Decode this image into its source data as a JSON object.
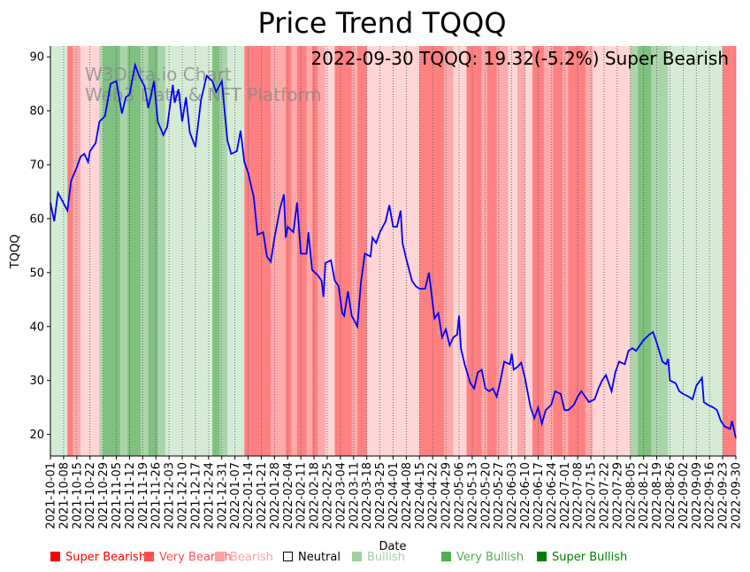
{
  "chart_data": {
    "type": "line",
    "title": "Price Trend TQQQ",
    "annotation": "2022-09-30 TQQQ: 19.32(-5.2%) Super Bearish",
    "watermark": [
      "W3Data.io Chart",
      "Web3 Data & NFT Platform"
    ],
    "xlabel": "Date",
    "ylabel": "TQQQ",
    "ylim": [
      16,
      92
    ],
    "yticks": [
      20,
      30,
      40,
      50,
      60,
      70,
      80,
      90
    ],
    "x_range": [
      "2021-10-01",
      "2022-09-30"
    ],
    "xticks": [
      "2021-10-01",
      "2021-10-08",
      "2021-10-15",
      "2021-10-22",
      "2021-10-29",
      "2021-11-05",
      "2021-11-12",
      "2021-11-19",
      "2021-11-26",
      "2021-12-03",
      "2021-12-10",
      "2021-12-17",
      "2021-12-24",
      "2021-12-31",
      "2022-01-07",
      "2022-01-14",
      "2022-01-21",
      "2022-01-28",
      "2022-02-04",
      "2022-02-11",
      "2022-02-18",
      "2022-02-25",
      "2022-03-04",
      "2022-03-11",
      "2022-03-18",
      "2022-03-25",
      "2022-04-01",
      "2022-04-08",
      "2022-04-15",
      "2022-04-22",
      "2022-04-29",
      "2022-05-06",
      "2022-05-13",
      "2022-05-20",
      "2022-05-27",
      "2022-06-03",
      "2022-06-10",
      "2022-06-17",
      "2022-06-24",
      "2022-07-01",
      "2022-07-08",
      "2022-07-15",
      "2022-07-22",
      "2022-07-29",
      "2022-08-05",
      "2022-08-12",
      "2022-08-19",
      "2022-08-26",
      "2022-09-02",
      "2022-09-09",
      "2022-09-16",
      "2022-09-23",
      "2022-09-30"
    ],
    "line_color": "#0000ff",
    "series": [
      {
        "name": "TQQQ",
        "points": [
          [
            "2021-10-01",
            63.0
          ],
          [
            "2021-10-03",
            59.5
          ],
          [
            "2021-10-05",
            64.8
          ],
          [
            "2021-10-07",
            63.5
          ],
          [
            "2021-10-10",
            61.5
          ],
          [
            "2021-10-12",
            67.0
          ],
          [
            "2021-10-15",
            69.5
          ],
          [
            "2021-10-17",
            71.5
          ],
          [
            "2021-10-19",
            72.0
          ],
          [
            "2021-10-21",
            70.5
          ],
          [
            "2021-10-22",
            72.5
          ],
          [
            "2021-10-25",
            74.0
          ],
          [
            "2021-10-27",
            78.0
          ],
          [
            "2021-10-30",
            79.0
          ],
          [
            "2021-11-02",
            85.0
          ],
          [
            "2021-11-05",
            85.5
          ],
          [
            "2021-11-08",
            79.5
          ],
          [
            "2021-11-10",
            82.5
          ],
          [
            "2021-11-12",
            83.0
          ],
          [
            "2021-11-15",
            88.5
          ],
          [
            "2021-11-17",
            86.5
          ],
          [
            "2021-11-20",
            84.5
          ],
          [
            "2021-11-22",
            80.5
          ],
          [
            "2021-11-25",
            85.5
          ],
          [
            "2021-11-27",
            78.0
          ],
          [
            "2021-11-30",
            75.5
          ],
          [
            "2021-12-02",
            77.0
          ],
          [
            "2021-12-05",
            84.8
          ],
          [
            "2021-12-06",
            81.5
          ],
          [
            "2021-12-08",
            84.0
          ],
          [
            "2021-12-10",
            78.0
          ],
          [
            "2021-12-12",
            82.5
          ],
          [
            "2021-12-14",
            76.0
          ],
          [
            "2021-12-17",
            73.3
          ],
          [
            "2021-12-20",
            82.0
          ],
          [
            "2021-12-23",
            86.5
          ],
          [
            "2021-12-26",
            85.5
          ],
          [
            "2021-12-28",
            83.5
          ],
          [
            "2021-12-31",
            85.5
          ],
          [
            "2022-01-03",
            74.5
          ],
          [
            "2022-01-05",
            72.0
          ],
          [
            "2022-01-08",
            72.5
          ],
          [
            "2022-01-10",
            76.3
          ],
          [
            "2022-01-12",
            70.5
          ],
          [
            "2022-01-14",
            68.5
          ],
          [
            "2022-01-17",
            64.0
          ],
          [
            "2022-01-19",
            57.0
          ],
          [
            "2022-01-22",
            57.5
          ],
          [
            "2022-01-24",
            53.0
          ],
          [
            "2022-01-26",
            52.0
          ],
          [
            "2022-01-28",
            56.5
          ],
          [
            "2022-01-31",
            62.0
          ],
          [
            "2022-02-02",
            64.5
          ],
          [
            "2022-02-03",
            56.5
          ],
          [
            "2022-02-04",
            58.5
          ],
          [
            "2022-02-07",
            57.5
          ],
          [
            "2022-02-09",
            63.0
          ],
          [
            "2022-02-11",
            53.5
          ],
          [
            "2022-02-14",
            53.5
          ],
          [
            "2022-02-15",
            57.5
          ],
          [
            "2022-02-17",
            50.5
          ],
          [
            "2022-02-20",
            49.5
          ],
          [
            "2022-02-22",
            48.5
          ],
          [
            "2022-02-23",
            45.5
          ],
          [
            "2022-02-24",
            51.8
          ],
          [
            "2022-02-27",
            52.3
          ],
          [
            "2022-03-01",
            48.5
          ],
          [
            "2022-03-03",
            47.5
          ],
          [
            "2022-03-05",
            42.5
          ],
          [
            "2022-03-06",
            42.0
          ],
          [
            "2022-03-08",
            46.5
          ],
          [
            "2022-03-10",
            42.0
          ],
          [
            "2022-03-13",
            40.0
          ],
          [
            "2022-03-15",
            48.5
          ],
          [
            "2022-03-17",
            53.5
          ],
          [
            "2022-03-20",
            53.0
          ],
          [
            "2022-03-21",
            56.5
          ],
          [
            "2022-03-23",
            55.5
          ],
          [
            "2022-03-25",
            57.5
          ],
          [
            "2022-03-28",
            59.5
          ],
          [
            "2022-03-30",
            62.5
          ],
          [
            "2022-04-01",
            58.5
          ],
          [
            "2022-04-03",
            58.5
          ],
          [
            "2022-04-05",
            61.5
          ],
          [
            "2022-04-06",
            55.5
          ],
          [
            "2022-04-08",
            52.5
          ],
          [
            "2022-04-11",
            48.5
          ],
          [
            "2022-04-13",
            47.5
          ],
          [
            "2022-04-15",
            47.0
          ],
          [
            "2022-04-18",
            47.0
          ],
          [
            "2022-04-20",
            50.0
          ],
          [
            "2022-04-23",
            41.5
          ],
          [
            "2022-04-25",
            42.5
          ],
          [
            "2022-04-27",
            38.0
          ],
          [
            "2022-04-29",
            39.5
          ],
          [
            "2022-05-01",
            36.5
          ],
          [
            "2022-05-03",
            38.0
          ],
          [
            "2022-05-05",
            38.5
          ],
          [
            "2022-05-06",
            42.0
          ],
          [
            "2022-05-07",
            36.0
          ],
          [
            "2022-05-09",
            33.0
          ],
          [
            "2022-05-12",
            29.5
          ],
          [
            "2022-05-14",
            28.5
          ],
          [
            "2022-05-16",
            31.5
          ],
          [
            "2022-05-18",
            32.0
          ],
          [
            "2022-05-20",
            28.5
          ],
          [
            "2022-05-22",
            28.0
          ],
          [
            "2022-05-24",
            28.5
          ],
          [
            "2022-05-26",
            27.0
          ],
          [
            "2022-05-28",
            30.0
          ],
          [
            "2022-05-30",
            33.5
          ],
          [
            "2022-06-02",
            33.0
          ],
          [
            "2022-06-03",
            35.0
          ],
          [
            "2022-06-04",
            32.0
          ],
          [
            "2022-06-06",
            32.5
          ],
          [
            "2022-06-08",
            33.3
          ],
          [
            "2022-06-10",
            30.5
          ],
          [
            "2022-06-13",
            25.0
          ],
          [
            "2022-06-15",
            23.0
          ],
          [
            "2022-06-17",
            25.0
          ],
          [
            "2022-06-19",
            22.0
          ],
          [
            "2022-06-21",
            24.5
          ],
          [
            "2022-06-24",
            25.5
          ],
          [
            "2022-06-26",
            28.0
          ],
          [
            "2022-06-29",
            27.5
          ],
          [
            "2022-07-01",
            24.5
          ],
          [
            "2022-07-03",
            24.5
          ],
          [
            "2022-07-06",
            25.5
          ],
          [
            "2022-07-08",
            27.0
          ],
          [
            "2022-07-10",
            28.0
          ],
          [
            "2022-07-12",
            27.0
          ],
          [
            "2022-07-14",
            26.0
          ],
          [
            "2022-07-17",
            26.5
          ],
          [
            "2022-07-19",
            28.5
          ],
          [
            "2022-07-21",
            30.0
          ],
          [
            "2022-07-23",
            31.0
          ],
          [
            "2022-07-26",
            28.0
          ],
          [
            "2022-07-28",
            31.5
          ],
          [
            "2022-07-30",
            33.5
          ],
          [
            "2022-08-02",
            33.0
          ],
          [
            "2022-08-04",
            35.5
          ],
          [
            "2022-08-06",
            36.0
          ],
          [
            "2022-08-08",
            35.5
          ],
          [
            "2022-08-10",
            36.5
          ],
          [
            "2022-08-12",
            37.5
          ],
          [
            "2022-08-15",
            38.5
          ],
          [
            "2022-08-17",
            39.0
          ],
          [
            "2022-08-19",
            37.0
          ],
          [
            "2022-08-22",
            33.5
          ],
          [
            "2022-08-24",
            33.0
          ],
          [
            "2022-08-25",
            34.0
          ],
          [
            "2022-08-26",
            30.0
          ],
          [
            "2022-08-29",
            29.5
          ],
          [
            "2022-08-31",
            28.0
          ],
          [
            "2022-09-02",
            27.5
          ],
          [
            "2022-09-05",
            27.0
          ],
          [
            "2022-09-07",
            26.5
          ],
          [
            "2022-09-09",
            29.0
          ],
          [
            "2022-09-12",
            30.5
          ],
          [
            "2022-09-13",
            26.0
          ],
          [
            "2022-09-15",
            25.5
          ],
          [
            "2022-09-18",
            25.0
          ],
          [
            "2022-09-20",
            24.5
          ],
          [
            "2022-09-22",
            22.5
          ],
          [
            "2022-09-24",
            21.5
          ],
          [
            "2022-09-27",
            21.0
          ],
          [
            "2022-09-28",
            22.5
          ],
          [
            "2022-09-30",
            19.32
          ]
        ]
      }
    ],
    "regimes": {
      "colors": {
        "Super Bearish": "#ff8080",
        "Very Bearish": "#ffaaaa",
        "Bearish": "#ffd5d5",
        "Neutral": "#ffffff",
        "Bullish": "#d5ebd5",
        "Very Bullish": "#aad5aa",
        "Super Bullish": "#80c080"
      },
      "periods": [
        [
          "2021-10-01",
          "2021-10-10",
          "Bullish"
        ],
        [
          "2021-10-10",
          "2021-10-13",
          "Super Bearish"
        ],
        [
          "2021-10-13",
          "2021-10-17",
          "Very Bearish"
        ],
        [
          "2021-10-17",
          "2021-10-27",
          "Bearish"
        ],
        [
          "2021-10-27",
          "2021-10-29",
          "Very Bullish"
        ],
        [
          "2021-10-29",
          "2021-11-07",
          "Super Bullish"
        ],
        [
          "2021-11-07",
          "2021-11-11",
          "Very Bullish"
        ],
        [
          "2021-11-11",
          "2021-11-18",
          "Super Bullish"
        ],
        [
          "2021-11-18",
          "2021-11-22",
          "Very Bullish"
        ],
        [
          "2021-11-22",
          "2021-11-27",
          "Super Bullish"
        ],
        [
          "2021-11-27",
          "2021-12-01",
          "Very Bullish"
        ],
        [
          "2021-12-01",
          "2021-12-26",
          "Bullish"
        ],
        [
          "2021-12-26",
          "2021-12-30",
          "Super Bullish"
        ],
        [
          "2021-12-30",
          "2022-01-03",
          "Very Bullish"
        ],
        [
          "2022-01-03",
          "2022-01-12",
          "Bullish"
        ],
        [
          "2022-01-12",
          "2022-01-26",
          "Super Bearish"
        ],
        [
          "2022-01-26",
          "2022-02-03",
          "Very Bearish"
        ],
        [
          "2022-02-03",
          "2022-02-06",
          "Super Bearish"
        ],
        [
          "2022-02-06",
          "2022-02-09",
          "Very Bearish"
        ],
        [
          "2022-02-09",
          "2022-02-14",
          "Super Bearish"
        ],
        [
          "2022-02-14",
          "2022-02-17",
          "Very Bearish"
        ],
        [
          "2022-02-17",
          "2022-02-20",
          "Super Bearish"
        ],
        [
          "2022-02-20",
          "2022-02-24",
          "Very Bearish"
        ],
        [
          "2022-02-24",
          "2022-03-01",
          "Bearish"
        ],
        [
          "2022-03-01",
          "2022-03-10",
          "Super Bearish"
        ],
        [
          "2022-03-10",
          "2022-03-13",
          "Very Bearish"
        ],
        [
          "2022-03-13",
          "2022-03-18",
          "Super Bearish"
        ],
        [
          "2022-03-18",
          "2022-04-15",
          "Bearish"
        ],
        [
          "2022-04-15",
          "2022-04-28",
          "Super Bearish"
        ],
        [
          "2022-04-28",
          "2022-05-03",
          "Very Bearish"
        ],
        [
          "2022-05-03",
          "2022-05-10",
          "Bearish"
        ],
        [
          "2022-05-10",
          "2022-05-18",
          "Super Bearish"
        ],
        [
          "2022-05-18",
          "2022-05-21",
          "Very Bearish"
        ],
        [
          "2022-05-21",
          "2022-05-26",
          "Super Bearish"
        ],
        [
          "2022-05-26",
          "2022-06-01",
          "Very Bearish"
        ],
        [
          "2022-06-01",
          "2022-06-06",
          "Bearish"
        ],
        [
          "2022-06-06",
          "2022-06-10",
          "Very Bearish"
        ],
        [
          "2022-06-10",
          "2022-06-14",
          "Bearish"
        ],
        [
          "2022-06-14",
          "2022-06-20",
          "Super Bearish"
        ],
        [
          "2022-06-20",
          "2022-06-25",
          "Very Bearish"
        ],
        [
          "2022-06-25",
          "2022-06-30",
          "Super Bearish"
        ],
        [
          "2022-06-30",
          "2022-07-03",
          "Very Bearish"
        ],
        [
          "2022-07-03",
          "2022-07-12",
          "Super Bearish"
        ],
        [
          "2022-07-12",
          "2022-07-16",
          "Very Bearish"
        ],
        [
          "2022-07-16",
          "2022-08-05",
          "Bearish"
        ],
        [
          "2022-08-05",
          "2022-08-09",
          "Very Bullish"
        ],
        [
          "2022-08-09",
          "2022-08-16",
          "Super Bullish"
        ],
        [
          "2022-08-16",
          "2022-08-25",
          "Very Bullish"
        ],
        [
          "2022-08-25",
          "2022-09-23",
          "Bullish"
        ],
        [
          "2022-09-23",
          "2022-09-30",
          "Super Bearish"
        ]
      ]
    },
    "legend": [
      {
        "label": "Super Bearish",
        "color": "#ff0000"
      },
      {
        "label": "Very Bearish",
        "color": "#ff5050"
      },
      {
        "label": "Bearish",
        "color": "#ffa0a0"
      },
      {
        "label": "Neutral",
        "color": "#000000",
        "hollow": true
      },
      {
        "label": "Bullish",
        "color": "#a0d0a0"
      },
      {
        "label": "Very Bullish",
        "color": "#50b050"
      },
      {
        "label": "Super Bullish",
        "color": "#008000"
      }
    ]
  }
}
